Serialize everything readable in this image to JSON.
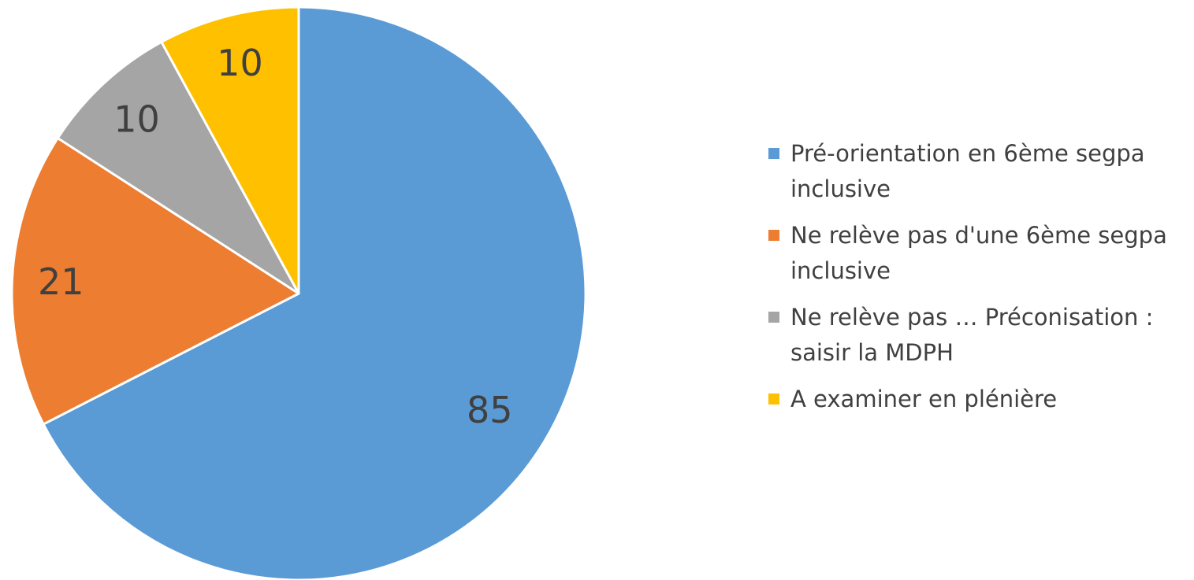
{
  "chart_data": {
    "type": "pie",
    "title": "",
    "start_angle_deg": 0,
    "direction": "clockwise",
    "legend_position": "right",
    "data_labels": true,
    "slices": [
      {
        "label": "Pré-orientation en  6ème segpa inclusive",
        "value": 85,
        "color": "#5B9BD5"
      },
      {
        "label": "Ne relève pas d'une 6ème segpa inclusive",
        "value": 21,
        "color": "#ED7D31"
      },
      {
        "label": "Ne relève pas … Préconisation : saisir la MDPH",
        "value": 10,
        "color": "#A5A5A5"
      },
      {
        "label": "A examiner en plénière",
        "value": 10,
        "color": "#FFC000"
      }
    ]
  }
}
